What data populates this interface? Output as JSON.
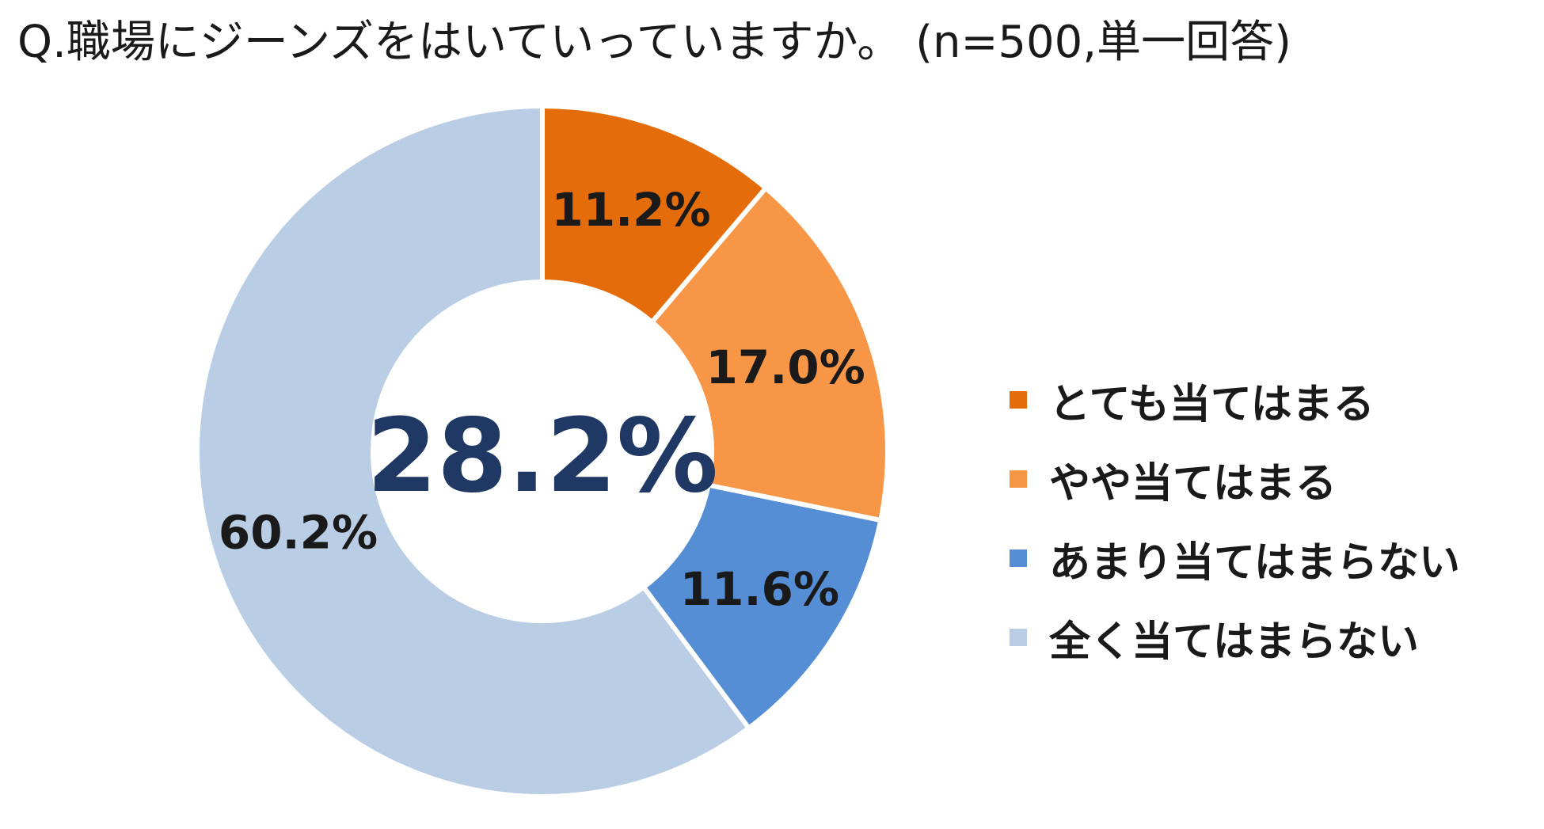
{
  "chart_data": {
    "type": "pie",
    "variant": "donut",
    "title": "Q.職場にジーンズをはいていっていますか。 (n=500,単一回答)",
    "center_label": "28.2%",
    "legend_position": "right",
    "slices": [
      {
        "label": "とても当てはまる",
        "value": 11.2,
        "value_label": "11.2%",
        "color": "#E46C0A"
      },
      {
        "label": "やや当てはまる",
        "value": 17.0,
        "value_label": "17.0%",
        "color": "#F79646"
      },
      {
        "label": "あまり当てはまらない",
        "value": 11.6,
        "value_label": "11.6%",
        "color": "#558ED5"
      },
      {
        "label": "全く当てはまらない",
        "value": 60.2,
        "value_label": "60.2%",
        "color": "#B9CDE5"
      }
    ]
  },
  "colors": {
    "center_text": "#1F3864",
    "label_text": "#1a1a1a"
  }
}
